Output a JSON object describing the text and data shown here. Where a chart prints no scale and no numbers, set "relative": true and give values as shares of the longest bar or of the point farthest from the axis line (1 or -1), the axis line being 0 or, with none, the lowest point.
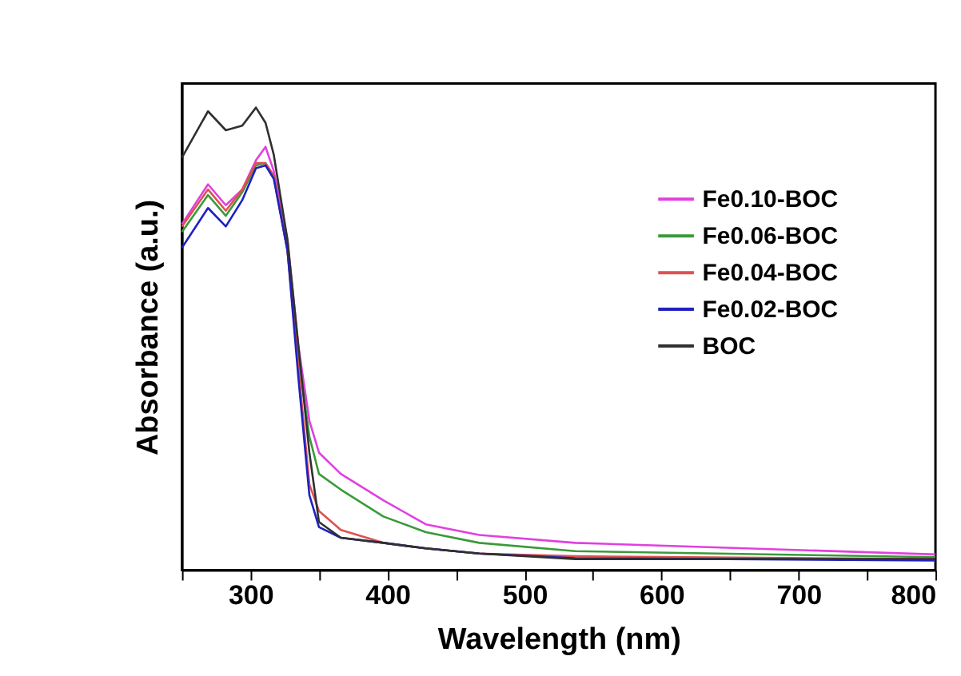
{
  "chart_data": {
    "type": "line",
    "relative": true,
    "xlabel": "Wavelength (nm)",
    "ylabel": "Absorbance (a.u.)",
    "x": [
      250,
      269,
      282,
      294,
      304,
      311,
      317,
      327,
      335,
      343,
      350,
      366,
      397,
      428,
      467,
      537,
      800
    ],
    "xlim": [
      250,
      800
    ],
    "xticks": [
      {
        "value": 250,
        "label": null
      },
      300,
      {
        "value": 350,
        "label": null
      },
      400,
      {
        "value": 450,
        "label": null
      },
      500,
      {
        "value": 550,
        "label": null
      },
      600,
      {
        "value": 650,
        "label": null
      },
      700,
      {
        "value": 750,
        "label": null
      },
      800
    ],
    "series": [
      {
        "name": "Fe0.10-BOC",
        "color": "#e040e0",
        "values": [
          0.748,
          0.834,
          0.789,
          0.823,
          0.886,
          0.915,
          0.863,
          0.714,
          0.484,
          0.323,
          0.254,
          0.208,
          0.151,
          0.099,
          0.076,
          0.059,
          0.034
        ]
      },
      {
        "name": "Fe0.06-BOC",
        "color": "#3a9a3a",
        "values": [
          0.731,
          0.811,
          0.766,
          0.817,
          0.875,
          0.88,
          0.852,
          0.691,
          0.461,
          0.289,
          0.208,
          0.174,
          0.116,
          0.082,
          0.059,
          0.041,
          0.028
        ]
      },
      {
        "name": "Fe0.04-BOC",
        "color": "#e05050",
        "values": [
          0.743,
          0.823,
          0.777,
          0.823,
          0.88,
          0.88,
          0.852,
          0.691,
          0.438,
          0.185,
          0.128,
          0.087,
          0.059,
          0.047,
          0.036,
          0.03,
          0.024
        ]
      },
      {
        "name": "Fe0.02-BOC",
        "color": "#2020c0",
        "values": [
          0.697,
          0.783,
          0.743,
          0.8,
          0.869,
          0.875,
          0.846,
          0.691,
          0.415,
          0.162,
          0.093,
          0.07,
          0.059,
          0.047,
          0.036,
          0.026,
          0.021
        ]
      },
      {
        "name": "BOC",
        "color": "#303030",
        "values": [
          0.892,
          0.992,
          0.951,
          0.961,
          1.0,
          0.967,
          0.898,
          0.714,
          0.484,
          0.254,
          0.104,
          0.07,
          0.059,
          0.047,
          0.036,
          0.024,
          0.024
        ]
      }
    ],
    "legend": "top right",
    "grid": false,
    "marker": "none",
    "line_style": "solid"
  }
}
